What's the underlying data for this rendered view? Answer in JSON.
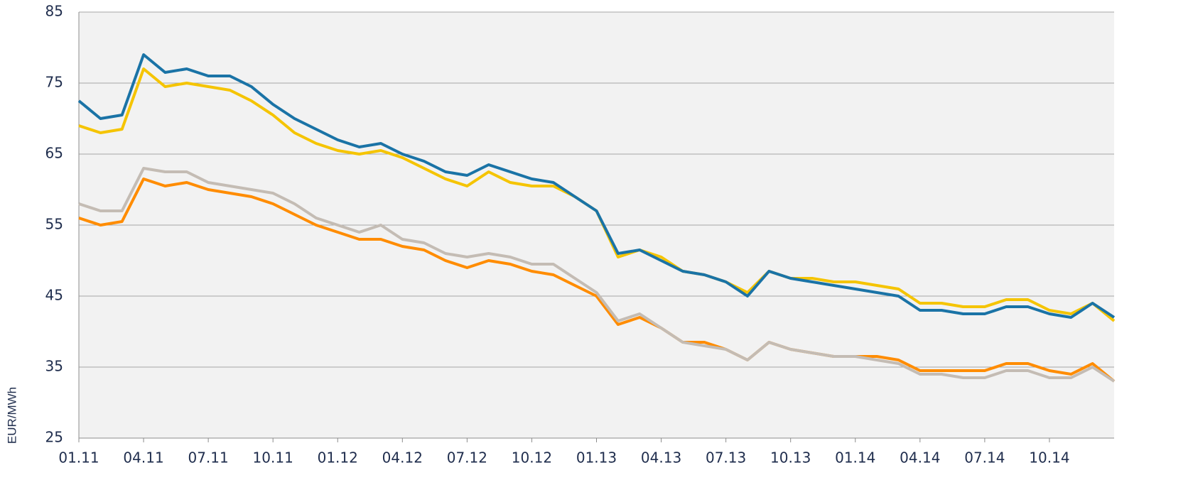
{
  "chart_data": {
    "type": "line",
    "y_label": "EUR/MWh",
    "categories": [
      "01.11",
      null,
      null,
      "04.11",
      null,
      null,
      "07.11",
      null,
      null,
      "10.11",
      null,
      null,
      "01.12",
      null,
      null,
      "04.12",
      null,
      null,
      "07.12",
      null,
      null,
      "10.12",
      null,
      null,
      "01.13",
      null,
      null,
      "04.13",
      null,
      null,
      "07.13",
      null,
      null,
      "10.13",
      null,
      null,
      "01.14",
      null,
      null,
      "04.14",
      null,
      null,
      "07.14",
      null,
      null,
      "10.14",
      null,
      null,
      null
    ],
    "series": [
      {
        "color": "#ff8c00",
        "values": [
          56,
          55,
          55.5,
          61.5,
          60.5,
          61,
          60,
          59.5,
          59,
          58,
          56.5,
          55,
          54,
          53,
          53,
          52,
          51.5,
          50,
          49,
          50,
          49.5,
          48.5,
          48,
          46.5,
          45,
          41,
          42,
          40.5,
          38.5,
          38.5,
          37.5,
          36,
          38.5,
          37.5,
          37,
          36.5,
          36.5,
          36.5,
          36,
          34.5,
          34.5,
          34.5,
          34.5,
          35.5,
          35.5,
          34.5,
          34,
          35.5,
          33
        ]
      },
      {
        "color": "#c4bcb4",
        "values": [
          58,
          57,
          57,
          63,
          62.5,
          62.5,
          61,
          60.5,
          60,
          59.5,
          58,
          56,
          55,
          54,
          55,
          53,
          52.5,
          51,
          50.5,
          51,
          50.5,
          49.5,
          49.5,
          47.5,
          45.5,
          41.5,
          42.5,
          40.5,
          38.5,
          38,
          37.5,
          36,
          38.5,
          37.5,
          37,
          36.5,
          36.5,
          36,
          35.5,
          34,
          34,
          33.5,
          33.5,
          34.5,
          34.5,
          33.5,
          33.5,
          35,
          33
        ]
      },
      {
        "color": "#f5c400",
        "values": [
          69,
          68,
          68.5,
          77,
          74.5,
          75,
          74.5,
          74,
          72.5,
          70.5,
          68,
          66.5,
          65.5,
          65,
          65.5,
          64.5,
          63,
          61.5,
          60.5,
          62.5,
          61,
          60.5,
          60.5,
          59,
          57,
          50.5,
          51.5,
          50.5,
          48.5,
          48,
          47,
          45.5,
          48.5,
          47.5,
          47.5,
          47,
          47,
          46.5,
          46,
          44,
          44,
          43.5,
          43.5,
          44.5,
          44.5,
          43,
          42.5,
          44,
          41.5
        ]
      },
      {
        "color": "#1a73a6",
        "values": [
          72.5,
          70,
          70.5,
          79,
          76.5,
          77,
          76,
          76,
          74.5,
          72,
          70,
          68.5,
          67,
          66,
          66.5,
          65,
          64,
          62.5,
          62,
          63.5,
          62.5,
          61.5,
          61,
          59,
          57,
          51,
          51.5,
          50,
          48.5,
          48,
          47,
          45,
          48.5,
          47.5,
          47,
          46.5,
          46,
          45.5,
          45,
          43,
          43,
          42.5,
          42.5,
          43.5,
          43.5,
          42.5,
          42,
          44,
          42
        ]
      }
    ],
    "ylim": [
      25,
      85
    ],
    "yticks": [
      25,
      35,
      45,
      55,
      65,
      75,
      85
    ],
    "grid": true
  }
}
